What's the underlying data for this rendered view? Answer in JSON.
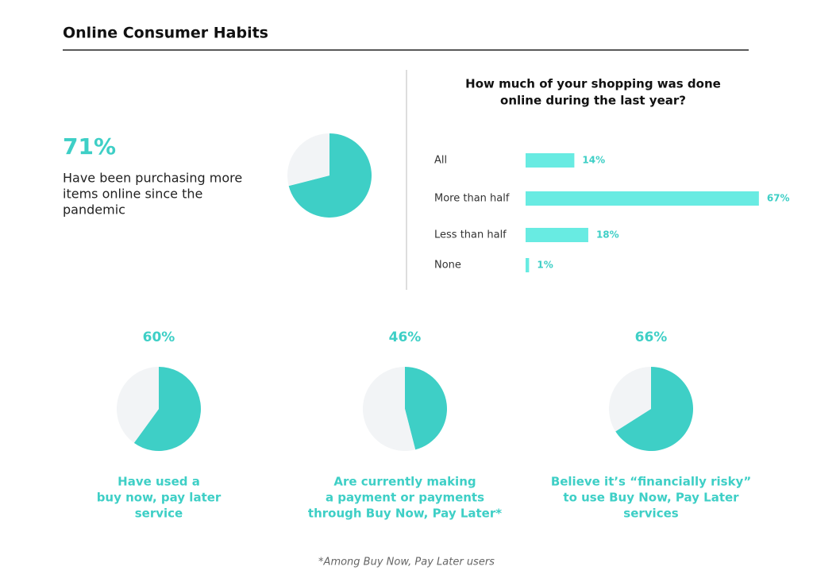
{
  "header": {
    "title": "Online Consumer Habits"
  },
  "chart_data": [
    {
      "type": "pie",
      "values": [
        71,
        29
      ],
      "value_labels": [
        "71%",
        null
      ],
      "colors": [
        "#3ecfc6",
        "#f2f4f6"
      ],
      "description": [
        "Have been purchasing more",
        "items online since the",
        "pandemic"
      ]
    },
    {
      "type": "bar",
      "title": [
        "How much of your shopping was done",
        "online during the last year?"
      ],
      "categories": [
        "All",
        "More than half",
        "Less than half",
        "None"
      ],
      "values": [
        14,
        67,
        18,
        1
      ],
      "value_labels": [
        "14%",
        "67%",
        "18%",
        "1%"
      ],
      "color": "#68ebe2",
      "xlim": [
        0,
        70
      ]
    },
    {
      "type": "pie",
      "values": [
        60,
        40
      ],
      "value_labels": [
        "60%",
        null
      ],
      "colors": [
        "#3ecfc6",
        "#f2f4f6"
      ],
      "description": [
        "Have used a",
        "buy now, pay later",
        "service"
      ]
    },
    {
      "type": "pie",
      "values": [
        46,
        54
      ],
      "value_labels": [
        "46%",
        null
      ],
      "colors": [
        "#3ecfc6",
        "#f2f4f6"
      ],
      "description": [
        "Are currently making",
        "a payment or payments",
        "through Buy Now, Pay Later*"
      ]
    },
    {
      "type": "pie",
      "values": [
        66,
        34
      ],
      "value_labels": [
        "66%",
        null
      ],
      "colors": [
        "#3ecfc6",
        "#f2f4f6"
      ],
      "description": [
        "Believe it’s “financially risky”",
        "to use Buy Now, Pay Later",
        "services"
      ]
    }
  ],
  "footnote": "*Among Buy Now, Pay Later users"
}
